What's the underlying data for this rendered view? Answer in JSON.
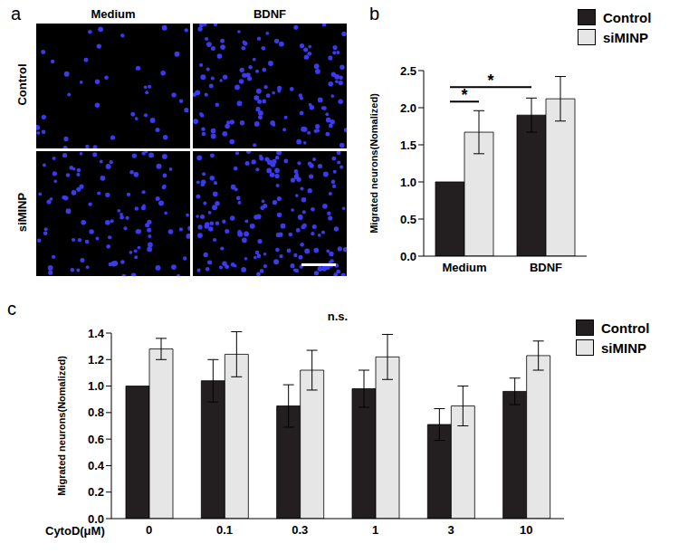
{
  "chart_data": [
    {
      "type": "image",
      "title": "a",
      "columns": [
        "Medium",
        "BDNF"
      ],
      "rows": [
        "Control",
        "siMINP"
      ]
    },
    {
      "type": "bar",
      "title": "b",
      "categories": [
        "Medium",
        "BDNF"
      ],
      "y_label": "Migrated neurons(Nomalized)",
      "ylim": [
        0,
        2.5
      ],
      "yticks": [
        {
          "value": 0,
          "label": "0.0"
        },
        {
          "value": 0.5,
          "label": "0.5"
        },
        {
          "value": 1,
          "label": "1.0"
        },
        {
          "value": 1.5,
          "label": "1.5"
        },
        {
          "value": 2,
          "label": "2.0"
        },
        {
          "value": 2.5,
          "label": "2.5"
        }
      ],
      "series": [
        {
          "name": "Control",
          "color": "#231f20",
          "values": [
            1.0,
            1.9
          ],
          "errors": [
            0,
            0.23
          ]
        },
        {
          "name": "siMINP",
          "color": "#e6e6e6",
          "values": [
            1.67,
            2.12
          ],
          "errors": [
            0.29,
            0.3
          ]
        }
      ],
      "legend": "upper right",
      "annotations": [
        "*",
        "*"
      ]
    },
    {
      "type": "bar",
      "title": "c",
      "categories": [
        "0",
        "0.1",
        "0.3",
        "1",
        "3",
        "10"
      ],
      "x_label": "CytoD(μM)",
      "y_label": "Migrated neurons(Nomalized)",
      "ylim": [
        0,
        1.4
      ],
      "yticks": [
        {
          "value": 0,
          "label": "0.0"
        },
        {
          "value": 0.2,
          "label": "0.2"
        },
        {
          "value": 0.4,
          "label": "0.4"
        },
        {
          "value": 0.6,
          "label": "0.6"
        },
        {
          "value": 0.8,
          "label": "0.8"
        },
        {
          "value": 1,
          "label": "1.0"
        },
        {
          "value": 1.2,
          "label": "1.2"
        },
        {
          "value": 1.4,
          "label": "1.4"
        }
      ],
      "series": [
        {
          "name": "Control",
          "color": "#231f20",
          "values": [
            1.0,
            1.04,
            0.85,
            0.98,
            0.71,
            0.96
          ],
          "errors": [
            0,
            0.16,
            0.16,
            0.14,
            0.12,
            0.1
          ]
        },
        {
          "name": "siMINP",
          "color": "#e6e6e6",
          "values": [
            1.28,
            1.24,
            1.12,
            1.22,
            0.85,
            1.23
          ],
          "errors": [
            0.08,
            0.17,
            0.15,
            0.17,
            0.15,
            0.11
          ]
        }
      ],
      "legend": "upper right",
      "annotations": [
        "n.s."
      ]
    }
  ]
}
